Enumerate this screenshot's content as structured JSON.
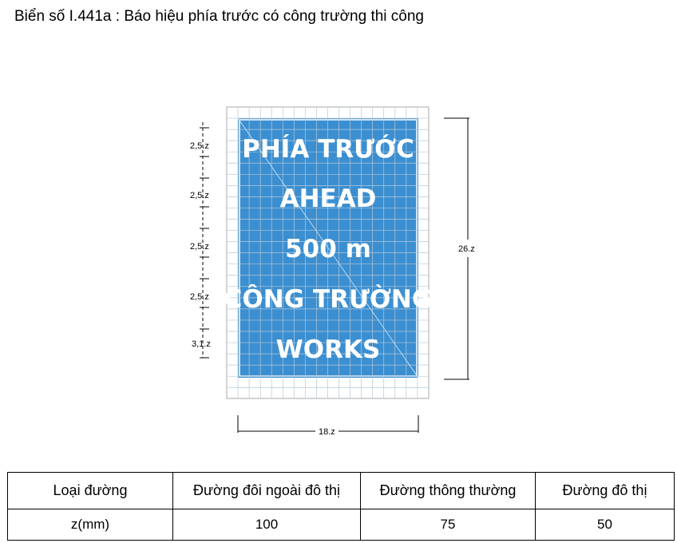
{
  "title": "Biển số I.441a : Báo hiệu phía trước có công trường thi công",
  "sign": {
    "background": "#3b8fd1",
    "text_color": "#ffffff",
    "lines": [
      "PHÍA TRƯỚC",
      "AHEAD",
      "500 m",
      "CÔNG TRƯỜNG",
      "WORKS"
    ]
  },
  "dimensions": {
    "rows": [
      "2,5.z",
      "2,5.z",
      "2,5.z",
      "2,5.z",
      "3,1.z"
    ],
    "height": "26.z",
    "width": "18.z"
  },
  "table": {
    "headers": [
      "Loại đường",
      "Đường đôi ngoài đô thị",
      "Đường thông thường",
      "Đường đô thị"
    ],
    "values": [
      "z(mm)",
      "100",
      "75",
      "50"
    ]
  }
}
